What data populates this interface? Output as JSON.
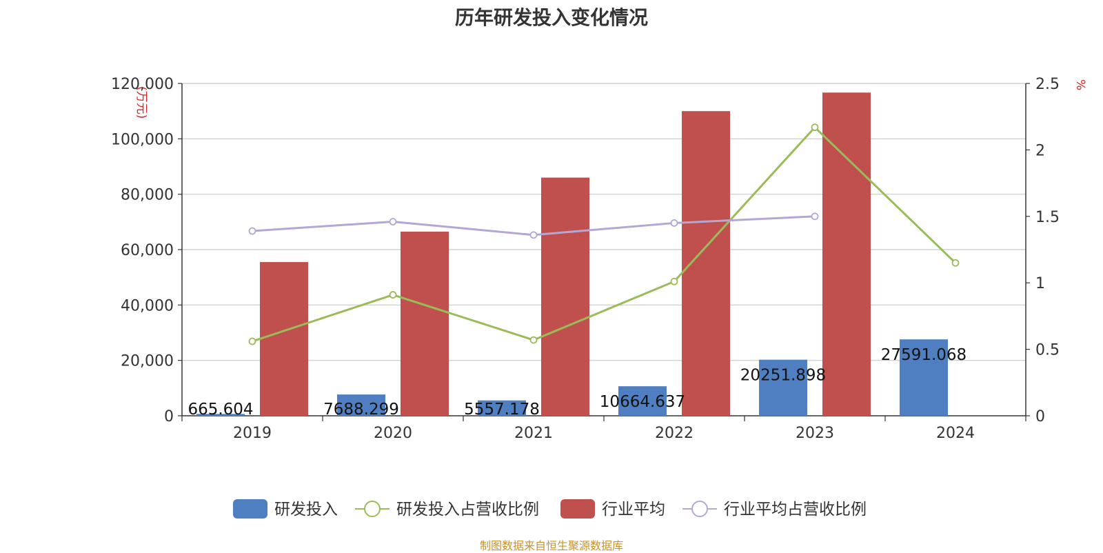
{
  "chart_data": {
    "type": "bar",
    "title": "历年研发投入变化情况",
    "categories": [
      "2019",
      "2020",
      "2021",
      "2022",
      "2023",
      "2024"
    ],
    "y_left": {
      "unit": "(万元)",
      "min": 0,
      "max": 120000,
      "ticks": [
        "0",
        "20,000",
        "40,000",
        "60,000",
        "80,000",
        "100,000",
        "120,000"
      ]
    },
    "y_right": {
      "unit": "%",
      "min": 0,
      "max": 2.5,
      "ticks": [
        "0",
        "0.5",
        "1",
        "1.5",
        "2",
        "2.5"
      ]
    },
    "grid": true,
    "legend_position": "bottom-center",
    "series": [
      {
        "name": "研发投入",
        "type": "bar",
        "axis": "left",
        "color": "#4f7fc0",
        "values": [
          665.604,
          7688.299,
          5557.178,
          10664.637,
          20251.898,
          27591.068
        ],
        "labels": [
          "665.604",
          "7688.299",
          "5557.178",
          "10664.637",
          "20251.898",
          "27591.068"
        ]
      },
      {
        "name": "研发投入占营收比例",
        "type": "line",
        "axis": "right",
        "color": "#9bbb59",
        "values": [
          0.56,
          0.91,
          0.57,
          1.01,
          2.17,
          1.15
        ]
      },
      {
        "name": "行业平均",
        "type": "bar",
        "axis": "left",
        "color": "#c0504d",
        "values": [
          55500,
          66500,
          86000,
          110000,
          116700,
          null
        ]
      },
      {
        "name": "行业平均占营收比例",
        "type": "line",
        "axis": "right",
        "color": "#b4a7d6",
        "values": [
          1.39,
          1.46,
          1.36,
          1.45,
          1.5,
          null
        ]
      }
    ]
  },
  "source_note": "制图数据来自恒生聚源数据库"
}
